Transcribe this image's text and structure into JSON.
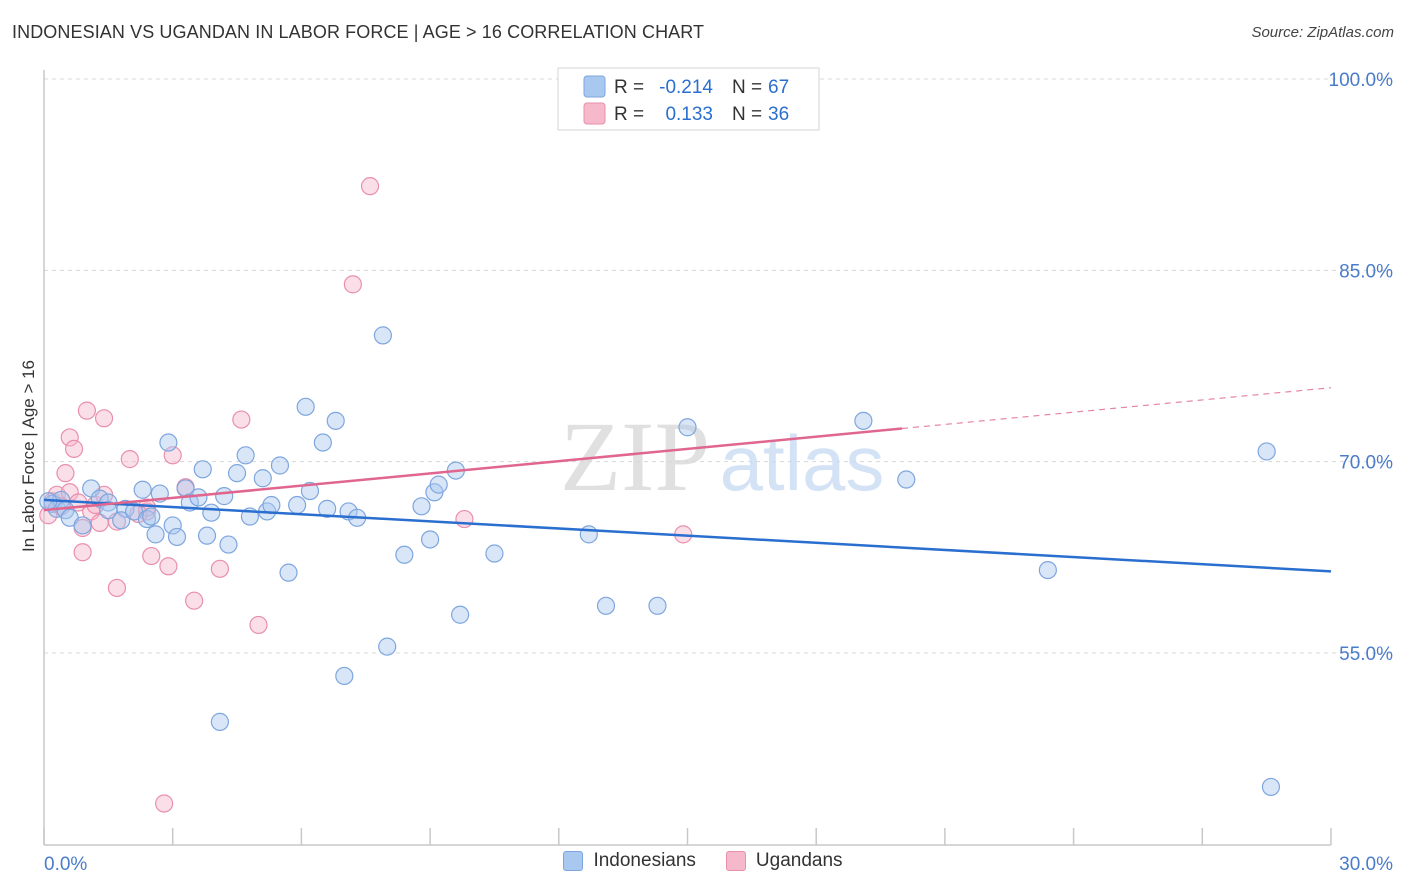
{
  "header": {
    "title": "INDONESIAN VS UGANDAN IN LABOR FORCE | AGE > 16 CORRELATION CHART",
    "source": "Source: ZipAtlas.com"
  },
  "watermark": {
    "zip": "ZIP",
    "atlas": "atlas"
  },
  "colors": {
    "blue_fill": "#a9c8f0",
    "blue_stroke": "#7ea6de",
    "blue_line": "#2a6fcf",
    "pink_fill": "#f6b8cb",
    "pink_stroke": "#e98fac",
    "pink_line": "#e0668f",
    "axis_text": "#4a7cc9",
    "grid": "#d8d8d8"
  },
  "legend_top": [
    {
      "r_label": "R =",
      "r_value": "-0.214",
      "n_label": "N =",
      "n_value": "67",
      "series": "Indonesians"
    },
    {
      "r_label": "R =",
      "r_value": "0.133",
      "n_label": "N =",
      "n_value": "36",
      "series": "Ugandans"
    }
  ],
  "chart_data": {
    "type": "scatter",
    "title": "INDONESIAN VS UGANDAN IN LABOR FORCE | AGE > 16 CORRELATION CHART",
    "xlabel": "",
    "ylabel": "In Labor Force | Age > 16",
    "xlim": [
      0,
      30
    ],
    "ylim": [
      40,
      102
    ],
    "x_tick_labels": [
      {
        "value": 0,
        "label": "0.0%"
      },
      {
        "value": 30,
        "label": "30.0%"
      }
    ],
    "y_tick_labels": [
      {
        "value": 55,
        "label": "55.0%"
      },
      {
        "value": 70,
        "label": "70.0%"
      },
      {
        "value": 85,
        "label": "85.0%"
      },
      {
        "value": 100,
        "label": "100.0%"
      }
    ],
    "series": [
      {
        "name": "Indonesians",
        "color": "#a9c8f0",
        "trend": {
          "x": [
            0,
            30
          ],
          "y": [
            67.0,
            61.4
          ],
          "style": "solid"
        },
        "points": [
          {
            "x": 0.2,
            "y": 66.7
          },
          {
            "x": 0.3,
            "y": 66.3
          },
          {
            "x": 0.4,
            "y": 67.0
          },
          {
            "x": 0.5,
            "y": 66.2
          },
          {
            "x": 0.6,
            "y": 65.6
          },
          {
            "x": 0.9,
            "y": 65.0
          },
          {
            "x": 1.1,
            "y": 67.9
          },
          {
            "x": 1.3,
            "y": 67.1
          },
          {
            "x": 1.5,
            "y": 66.8
          },
          {
            "x": 1.5,
            "y": 66.2
          },
          {
            "x": 1.9,
            "y": 66.3
          },
          {
            "x": 1.8,
            "y": 65.4
          },
          {
            "x": 2.1,
            "y": 66.1
          },
          {
            "x": 2.3,
            "y": 67.8
          },
          {
            "x": 2.4,
            "y": 65.5
          },
          {
            "x": 2.5,
            "y": 65.7
          },
          {
            "x": 2.6,
            "y": 64.3
          },
          {
            "x": 2.7,
            "y": 67.5
          },
          {
            "x": 2.9,
            "y": 71.5
          },
          {
            "x": 3.0,
            "y": 65.0
          },
          {
            "x": 3.1,
            "y": 64.1
          },
          {
            "x": 3.3,
            "y": 67.9
          },
          {
            "x": 3.4,
            "y": 66.8
          },
          {
            "x": 3.6,
            "y": 67.2
          },
          {
            "x": 3.7,
            "y": 69.4
          },
          {
            "x": 3.8,
            "y": 64.2
          },
          {
            "x": 3.9,
            "y": 66.0
          },
          {
            "x": 4.2,
            "y": 67.3
          },
          {
            "x": 4.3,
            "y": 63.5
          },
          {
            "x": 4.5,
            "y": 69.1
          },
          {
            "x": 4.7,
            "y": 70.5
          },
          {
            "x": 4.8,
            "y": 65.7
          },
          {
            "x": 5.1,
            "y": 68.7
          },
          {
            "x": 5.2,
            "y": 66.1
          },
          {
            "x": 5.3,
            "y": 66.6
          },
          {
            "x": 5.5,
            "y": 69.7
          },
          {
            "x": 5.7,
            "y": 61.3
          },
          {
            "x": 5.9,
            "y": 66.6
          },
          {
            "x": 6.1,
            "y": 74.3
          },
          {
            "x": 6.2,
            "y": 67.7
          },
          {
            "x": 6.5,
            "y": 71.5
          },
          {
            "x": 6.6,
            "y": 66.3
          },
          {
            "x": 6.8,
            "y": 73.2
          },
          {
            "x": 7.1,
            "y": 66.1
          },
          {
            "x": 7.3,
            "y": 65.6
          },
          {
            "x": 7.0,
            "y": 53.2
          },
          {
            "x": 7.9,
            "y": 79.9
          },
          {
            "x": 8.0,
            "y": 55.5
          },
          {
            "x": 8.4,
            "y": 62.7
          },
          {
            "x": 8.8,
            "y": 66.5
          },
          {
            "x": 9.0,
            "y": 63.9
          },
          {
            "x": 9.1,
            "y": 67.6
          },
          {
            "x": 9.2,
            "y": 68.2
          },
          {
            "x": 9.6,
            "y": 69.3
          },
          {
            "x": 9.7,
            "y": 58.0
          },
          {
            "x": 10.5,
            "y": 62.8
          },
          {
            "x": 4.1,
            "y": 49.6
          },
          {
            "x": 12.7,
            "y": 64.3
          },
          {
            "x": 13.1,
            "y": 58.7
          },
          {
            "x": 14.3,
            "y": 58.7
          },
          {
            "x": 15.0,
            "y": 72.7
          },
          {
            "x": 19.1,
            "y": 73.2
          },
          {
            "x": 20.1,
            "y": 68.6
          },
          {
            "x": 23.4,
            "y": 61.5
          },
          {
            "x": 28.5,
            "y": 70.8
          },
          {
            "x": 28.6,
            "y": 44.5
          },
          {
            "x": 0.1,
            "y": 66.9
          }
        ]
      },
      {
        "name": "Ugandans",
        "color": "#f6b8cb",
        "trend": {
          "x": [
            0,
            20
          ],
          "y": [
            66.2,
            72.6
          ],
          "style": "solid",
          "extended": {
            "x": [
              20,
              30
            ],
            "y": [
              72.6,
              75.8
            ],
            "style": "dashed"
          }
        },
        "points": [
          {
            "x": 0.1,
            "y": 65.8
          },
          {
            "x": 0.2,
            "y": 66.9
          },
          {
            "x": 0.3,
            "y": 67.4
          },
          {
            "x": 0.4,
            "y": 66.5
          },
          {
            "x": 0.5,
            "y": 69.1
          },
          {
            "x": 0.6,
            "y": 67.6
          },
          {
            "x": 0.6,
            "y": 71.9
          },
          {
            "x": 0.7,
            "y": 71.0
          },
          {
            "x": 0.8,
            "y": 66.8
          },
          {
            "x": 0.9,
            "y": 64.8
          },
          {
            "x": 0.9,
            "y": 62.9
          },
          {
            "x": 1.0,
            "y": 74.0
          },
          {
            "x": 1.1,
            "y": 66.1
          },
          {
            "x": 1.2,
            "y": 66.6
          },
          {
            "x": 1.3,
            "y": 65.2
          },
          {
            "x": 1.4,
            "y": 67.4
          },
          {
            "x": 1.4,
            "y": 73.4
          },
          {
            "x": 1.7,
            "y": 65.3
          },
          {
            "x": 1.7,
            "y": 60.1
          },
          {
            "x": 2.0,
            "y": 70.2
          },
          {
            "x": 2.4,
            "y": 66.1
          },
          {
            "x": 2.4,
            "y": 66.4
          },
          {
            "x": 2.5,
            "y": 62.6
          },
          {
            "x": 2.8,
            "y": 43.2
          },
          {
            "x": 2.9,
            "y": 61.8
          },
          {
            "x": 3.0,
            "y": 70.5
          },
          {
            "x": 3.3,
            "y": 68.0
          },
          {
            "x": 3.5,
            "y": 59.1
          },
          {
            "x": 4.1,
            "y": 61.6
          },
          {
            "x": 4.6,
            "y": 73.3
          },
          {
            "x": 5.0,
            "y": 57.2
          },
          {
            "x": 7.2,
            "y": 83.9
          },
          {
            "x": 7.6,
            "y": 91.6
          },
          {
            "x": 9.8,
            "y": 65.5
          },
          {
            "x": 14.9,
            "y": 64.3
          },
          {
            "x": 2.2,
            "y": 65.9
          }
        ]
      }
    ]
  }
}
